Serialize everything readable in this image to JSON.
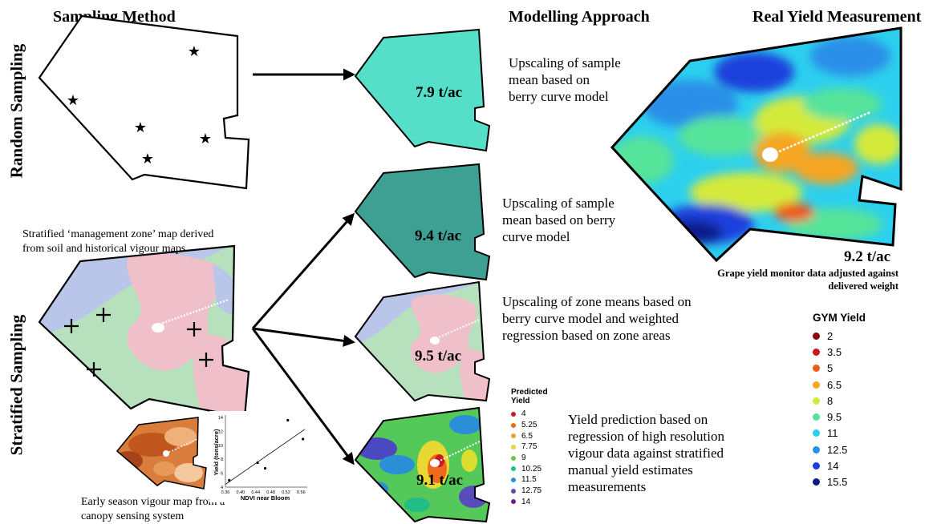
{
  "headers": {
    "sampling_method": "Sampling Method",
    "modelling_approach": "Modelling Approach",
    "real_yield": "Real Yield Measurement"
  },
  "side_labels": {
    "random": "Random Sampling",
    "stratified": "Stratified Sampling"
  },
  "stratified_map_caption": "Stratified ‘management zone’ map derived from soil and historical vigour maps",
  "early_vigour_caption": "Early season vigour map from a canopy sensing system",
  "approaches": [
    {
      "label": "Upscaling of sample mean based on berry curve model",
      "yield": "7.9 t/ac",
      "color": "#55dfc9"
    },
    {
      "label": "Upscaling of sample mean based on berry curve model",
      "yield": "9.4 t/ac",
      "color": "#3e9f93"
    },
    {
      "label": "Upscaling of zone means based on berry curve model and weighted regression based on zone areas",
      "yield": "9.5 t/ac"
    },
    {
      "label": "Yield prediction based on regression of high resolution vigour data against stratified manual yield estimates measurements",
      "yield": "9.1 t/ac"
    }
  ],
  "real_yield": {
    "value": "9.2 t/ac",
    "caption": "Grape yield monitor data adjusted against delivered weight"
  },
  "zone_colors": {
    "blue": "#b9c6ea",
    "green": "#b7e0bd",
    "pink": "#efc0c9"
  },
  "gym_legend": {
    "title": "GYM Yield",
    "items": [
      {
        "label": "2",
        "color": "#8b0a0a"
      },
      {
        "label": "3.5",
        "color": "#c9171b"
      },
      {
        "label": "5",
        "color": "#ef5a1e"
      },
      {
        "label": "6.5",
        "color": "#f5a623"
      },
      {
        "label": "8",
        "color": "#d4ea3a"
      },
      {
        "label": "9.5",
        "color": "#57e39a"
      },
      {
        "label": "11",
        "color": "#2cd0ee"
      },
      {
        "label": "12.5",
        "color": "#2a8fe8"
      },
      {
        "label": "14",
        "color": "#1b3fdc"
      },
      {
        "label": "15.5",
        "color": "#0d1a8a"
      }
    ]
  },
  "predicted_legend": {
    "title_line1": "Predicted",
    "title_line2": "Yield",
    "items": [
      {
        "label": "4",
        "color": "#c41e24"
      },
      {
        "label": "5.25",
        "color": "#ef6a1c"
      },
      {
        "label": "6.5",
        "color": "#f3a02a"
      },
      {
        "label": "7.75",
        "color": "#d9de2f"
      },
      {
        "label": "9",
        "color": "#5fcf3c"
      },
      {
        "label": "10.25",
        "color": "#22bd84"
      },
      {
        "label": "11.5",
        "color": "#2a8fd6"
      },
      {
        "label": "12.75",
        "color": "#5a4bbd"
      },
      {
        "label": "14",
        "color": "#6a1f9a"
      }
    ]
  },
  "chart_data": {
    "type": "scatter",
    "xlabel": "NDVI near Bloom",
    "ylabel": "Yield (tons/acre)",
    "xlim": [
      0.36,
      0.57
    ],
    "ylim": [
      4,
      14
    ],
    "x_ticks": [
      "0.36",
      "0.40",
      "0.44",
      "0.48",
      "0.52",
      "0.56"
    ],
    "y_ticks": [
      "4",
      "6",
      "8",
      "10",
      "12",
      "14"
    ],
    "points": [
      {
        "x": 0.37,
        "y": 5.0
      },
      {
        "x": 0.445,
        "y": 7.5
      },
      {
        "x": 0.465,
        "y": 6.7
      },
      {
        "x": 0.525,
        "y": 13.6
      },
      {
        "x": 0.565,
        "y": 10.9
      }
    ],
    "trend": {
      "x": [
        0.36,
        0.57
      ],
      "y": [
        4.4,
        12.3
      ]
    }
  }
}
